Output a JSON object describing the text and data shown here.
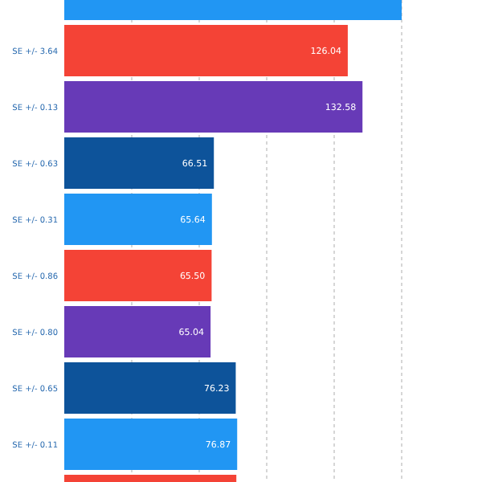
{
  "chart_data": {
    "type": "bar",
    "orientation": "horizontal",
    "categories": [
      null,
      "SE +/- 3.64",
      "SE +/- 0.13",
      "SE +/- 0.63",
      "SE +/- 0.31",
      "SE +/- 0.86",
      "SE +/- 0.80",
      "SE +/- 0.65",
      "SE +/- 0.11",
      null
    ],
    "values": [
      150,
      126.04,
      132.58,
      66.51,
      65.64,
      65.5,
      65.04,
      76.23,
      76.87,
      76.5
    ],
    "value_labels": [
      null,
      "126.04",
      "132.58",
      "66.51",
      "65.64",
      "65.50",
      "65.04",
      "76.23",
      "76.87",
      null
    ],
    "colors": [
      "#2196f3",
      "#f44336",
      "#673ab7",
      "#0d539a",
      "#2196f3",
      "#f44336",
      "#673ab7",
      "#0d539a",
      "#2196f3",
      "#f44336"
    ],
    "xlim": [
      0,
      150
    ],
    "xticks": [
      {
        "value": 30,
        "label": null
      },
      {
        "value": 60,
        "label": null
      },
      {
        "value": 90,
        "label": null
      },
      {
        "value": 120,
        "label": null
      },
      {
        "value": 150,
        "label": null
      }
    ],
    "grid": "x",
    "tick_labels": "y"
  }
}
